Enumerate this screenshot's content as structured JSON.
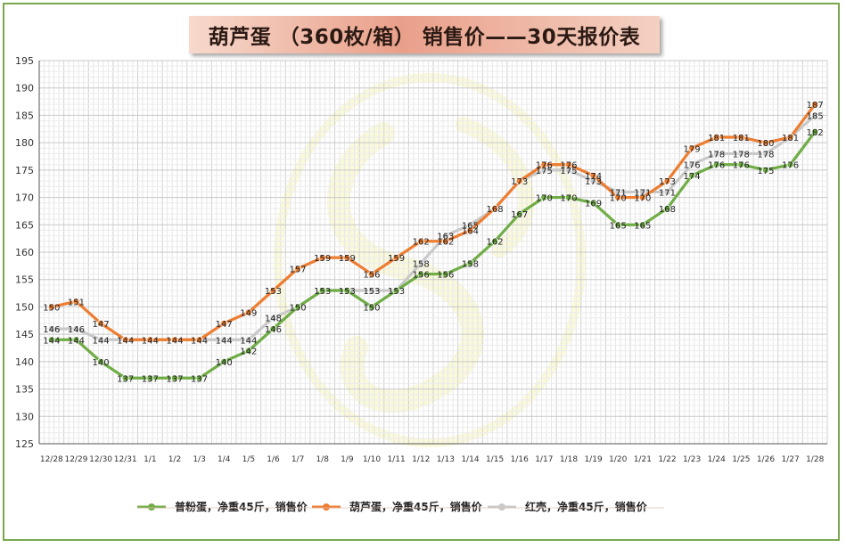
{
  "title": "葫芦蛋 （360枚/箱） 销售价——30天报价表",
  "chart_data": {
    "type": "line",
    "categories": [
      "12/28",
      "12/29",
      "12/30",
      "12/31",
      "1/1",
      "1/2",
      "1/3",
      "1/4",
      "1/5",
      "1/6",
      "1/7",
      "1/8",
      "1/9",
      "1/10",
      "1/11",
      "1/12",
      "1/13",
      "1/14",
      "1/15",
      "1/16",
      "1/17",
      "1/18",
      "1/19",
      "1/20",
      "1/21",
      "1/22",
      "1/23",
      "1/24",
      "1/25",
      "1/26",
      "1/27",
      "1/28"
    ],
    "ylim": [
      125,
      195
    ],
    "yticks": [
      125,
      130,
      135,
      140,
      145,
      150,
      155,
      160,
      165,
      170,
      175,
      180,
      185,
      190,
      195
    ],
    "grid": true,
    "legend_position": "bottom",
    "series": [
      {
        "name": "普粉蛋，净重45斤，销售价",
        "color": "#70ad47",
        "values": [
          144,
          144,
          140,
          137,
          137,
          137,
          137,
          140,
          142,
          146,
          150,
          153,
          153,
          150,
          153,
          156,
          156,
          158,
          162,
          167,
          170,
          170,
          169,
          165,
          165,
          168,
          174,
          176,
          176,
          175,
          176,
          182
        ],
        "labels": [
          "144",
          "144",
          "140",
          "137",
          "137",
          "137",
          "137",
          "140",
          "142",
          "146",
          "",
          "",
          "",
          "150",
          "",
          "156",
          "156",
          "158",
          "162",
          "167",
          "170",
          "170",
          "169",
          "165",
          "165",
          "168",
          "174",
          "176",
          "176",
          "175",
          "176",
          "182"
        ]
      },
      {
        "name": "葫芦蛋，净重45斤，销售价",
        "color": "#ed7d31",
        "values": [
          150,
          151,
          147,
          144,
          144,
          144,
          144,
          147,
          149,
          153,
          157,
          159,
          159,
          156,
          159,
          162,
          162,
          164,
          168,
          173,
          176,
          176,
          174,
          170,
          170,
          173,
          179,
          181,
          181,
          180,
          181,
          187
        ],
        "labels": [
          "150",
          "151",
          "147",
          "",
          "",
          "",
          "",
          "147",
          "149",
          "153",
          "157",
          "159",
          "159",
          "156",
          "159",
          "162",
          "162",
          "164",
          "",
          "",
          "176",
          "176",
          "174",
          "170",
          "170",
          "173",
          "179",
          "181",
          "181",
          "180",
          "",
          "187"
        ]
      },
      {
        "name": "红壳，净重45斤，销售价",
        "color": "#c9c9c9",
        "values": [
          146,
          146,
          144,
          144,
          144,
          144,
          144,
          144,
          144,
          148,
          150,
          153,
          153,
          153,
          153,
          158,
          163,
          165,
          168,
          173,
          175,
          175,
          173,
          171,
          171,
          171,
          176,
          178,
          178,
          178,
          181,
          185
        ],
        "labels": [
          "146",
          "146",
          "144",
          "144",
          "144",
          "144",
          "144",
          "144",
          "144",
          "148",
          "150",
          "153",
          "153",
          "153",
          "153",
          "158",
          "163",
          "165",
          "168",
          "173",
          "175",
          "175",
          "173",
          "171",
          "171",
          "171",
          "176",
          "178",
          "178",
          "178",
          "181",
          "185"
        ]
      }
    ]
  }
}
